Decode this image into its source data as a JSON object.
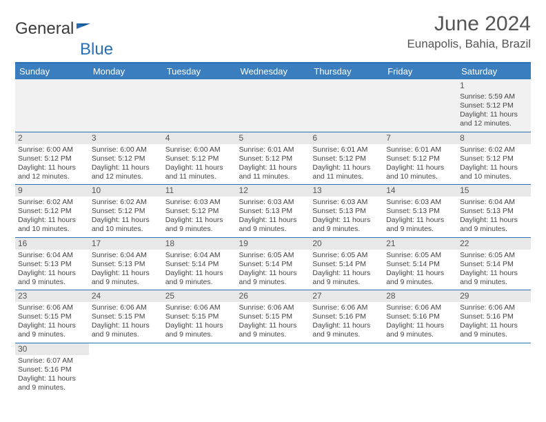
{
  "logo": {
    "text1": "General",
    "text2": "Blue"
  },
  "title": {
    "month": "June 2024",
    "location": "Eunapolis, Bahia, Brazil"
  },
  "colors": {
    "header_bg": "#3a7ebf",
    "header_text": "#ffffff",
    "border": "#2a6fb5",
    "daynum_bg": "#e8e8e8",
    "firstweek_bg": "#f1f1f1",
    "text": "#444444",
    "title_text": "#555555"
  },
  "typography": {
    "title_fontsize": 30,
    "location_fontsize": 17,
    "header_fontsize": 13,
    "cell_fontsize": 10.5,
    "daynum_fontsize": 12
  },
  "dayHeaders": [
    "Sunday",
    "Monday",
    "Tuesday",
    "Wednesday",
    "Thursday",
    "Friday",
    "Saturday"
  ],
  "weeks": [
    [
      null,
      null,
      null,
      null,
      null,
      null,
      {
        "n": "1",
        "sr": "Sunrise: 5:59 AM",
        "ss": "Sunset: 5:12 PM",
        "d1": "Daylight: 11 hours",
        "d2": "and 12 minutes."
      }
    ],
    [
      {
        "n": "2",
        "sr": "Sunrise: 6:00 AM",
        "ss": "Sunset: 5:12 PM",
        "d1": "Daylight: 11 hours",
        "d2": "and 12 minutes."
      },
      {
        "n": "3",
        "sr": "Sunrise: 6:00 AM",
        "ss": "Sunset: 5:12 PM",
        "d1": "Daylight: 11 hours",
        "d2": "and 12 minutes."
      },
      {
        "n": "4",
        "sr": "Sunrise: 6:00 AM",
        "ss": "Sunset: 5:12 PM",
        "d1": "Daylight: 11 hours",
        "d2": "and 11 minutes."
      },
      {
        "n": "5",
        "sr": "Sunrise: 6:01 AM",
        "ss": "Sunset: 5:12 PM",
        "d1": "Daylight: 11 hours",
        "d2": "and 11 minutes."
      },
      {
        "n": "6",
        "sr": "Sunrise: 6:01 AM",
        "ss": "Sunset: 5:12 PM",
        "d1": "Daylight: 11 hours",
        "d2": "and 11 minutes."
      },
      {
        "n": "7",
        "sr": "Sunrise: 6:01 AM",
        "ss": "Sunset: 5:12 PM",
        "d1": "Daylight: 11 hours",
        "d2": "and 10 minutes."
      },
      {
        "n": "8",
        "sr": "Sunrise: 6:02 AM",
        "ss": "Sunset: 5:12 PM",
        "d1": "Daylight: 11 hours",
        "d2": "and 10 minutes."
      }
    ],
    [
      {
        "n": "9",
        "sr": "Sunrise: 6:02 AM",
        "ss": "Sunset: 5:12 PM",
        "d1": "Daylight: 11 hours",
        "d2": "and 10 minutes."
      },
      {
        "n": "10",
        "sr": "Sunrise: 6:02 AM",
        "ss": "Sunset: 5:12 PM",
        "d1": "Daylight: 11 hours",
        "d2": "and 10 minutes."
      },
      {
        "n": "11",
        "sr": "Sunrise: 6:03 AM",
        "ss": "Sunset: 5:12 PM",
        "d1": "Daylight: 11 hours",
        "d2": "and 9 minutes."
      },
      {
        "n": "12",
        "sr": "Sunrise: 6:03 AM",
        "ss": "Sunset: 5:13 PM",
        "d1": "Daylight: 11 hours",
        "d2": "and 9 minutes."
      },
      {
        "n": "13",
        "sr": "Sunrise: 6:03 AM",
        "ss": "Sunset: 5:13 PM",
        "d1": "Daylight: 11 hours",
        "d2": "and 9 minutes."
      },
      {
        "n": "14",
        "sr": "Sunrise: 6:03 AM",
        "ss": "Sunset: 5:13 PM",
        "d1": "Daylight: 11 hours",
        "d2": "and 9 minutes."
      },
      {
        "n": "15",
        "sr": "Sunrise: 6:04 AM",
        "ss": "Sunset: 5:13 PM",
        "d1": "Daylight: 11 hours",
        "d2": "and 9 minutes."
      }
    ],
    [
      {
        "n": "16",
        "sr": "Sunrise: 6:04 AM",
        "ss": "Sunset: 5:13 PM",
        "d1": "Daylight: 11 hours",
        "d2": "and 9 minutes."
      },
      {
        "n": "17",
        "sr": "Sunrise: 6:04 AM",
        "ss": "Sunset: 5:13 PM",
        "d1": "Daylight: 11 hours",
        "d2": "and 9 minutes."
      },
      {
        "n": "18",
        "sr": "Sunrise: 6:04 AM",
        "ss": "Sunset: 5:14 PM",
        "d1": "Daylight: 11 hours",
        "d2": "and 9 minutes."
      },
      {
        "n": "19",
        "sr": "Sunrise: 6:05 AM",
        "ss": "Sunset: 5:14 PM",
        "d1": "Daylight: 11 hours",
        "d2": "and 9 minutes."
      },
      {
        "n": "20",
        "sr": "Sunrise: 6:05 AM",
        "ss": "Sunset: 5:14 PM",
        "d1": "Daylight: 11 hours",
        "d2": "and 9 minutes."
      },
      {
        "n": "21",
        "sr": "Sunrise: 6:05 AM",
        "ss": "Sunset: 5:14 PM",
        "d1": "Daylight: 11 hours",
        "d2": "and 9 minutes."
      },
      {
        "n": "22",
        "sr": "Sunrise: 6:05 AM",
        "ss": "Sunset: 5:14 PM",
        "d1": "Daylight: 11 hours",
        "d2": "and 9 minutes."
      }
    ],
    [
      {
        "n": "23",
        "sr": "Sunrise: 6:06 AM",
        "ss": "Sunset: 5:15 PM",
        "d1": "Daylight: 11 hours",
        "d2": "and 9 minutes."
      },
      {
        "n": "24",
        "sr": "Sunrise: 6:06 AM",
        "ss": "Sunset: 5:15 PM",
        "d1": "Daylight: 11 hours",
        "d2": "and 9 minutes."
      },
      {
        "n": "25",
        "sr": "Sunrise: 6:06 AM",
        "ss": "Sunset: 5:15 PM",
        "d1": "Daylight: 11 hours",
        "d2": "and 9 minutes."
      },
      {
        "n": "26",
        "sr": "Sunrise: 6:06 AM",
        "ss": "Sunset: 5:15 PM",
        "d1": "Daylight: 11 hours",
        "d2": "and 9 minutes."
      },
      {
        "n": "27",
        "sr": "Sunrise: 6:06 AM",
        "ss": "Sunset: 5:16 PM",
        "d1": "Daylight: 11 hours",
        "d2": "and 9 minutes."
      },
      {
        "n": "28",
        "sr": "Sunrise: 6:06 AM",
        "ss": "Sunset: 5:16 PM",
        "d1": "Daylight: 11 hours",
        "d2": "and 9 minutes."
      },
      {
        "n": "29",
        "sr": "Sunrise: 6:06 AM",
        "ss": "Sunset: 5:16 PM",
        "d1": "Daylight: 11 hours",
        "d2": "and 9 minutes."
      }
    ],
    [
      {
        "n": "30",
        "sr": "Sunrise: 6:07 AM",
        "ss": "Sunset: 5:16 PM",
        "d1": "Daylight: 11 hours",
        "d2": "and 9 minutes."
      },
      null,
      null,
      null,
      null,
      null,
      null
    ]
  ]
}
